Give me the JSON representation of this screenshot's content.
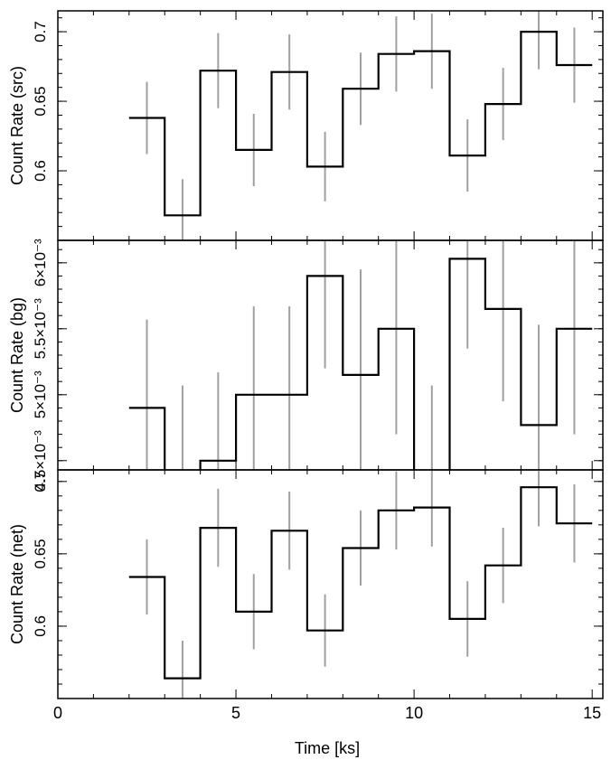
{
  "figure": {
    "xlabel": "Time [ks]",
    "colors": {
      "step": "#000000",
      "error_bar": "#a0a0a0",
      "axis": "#000000"
    }
  },
  "chart_data": [
    {
      "type": "line",
      "style": "step",
      "title": "",
      "ylabel": "Count Rate (src)",
      "xlabel": "",
      "xlim": [
        0,
        15.3
      ],
      "ylim": [
        0.55,
        0.715
      ],
      "yticks": [
        0.6,
        0.65,
        0.7
      ],
      "ytick_labels": [
        "0.6",
        "0.65",
        "0.7"
      ],
      "bin_width": 1.0,
      "x": [
        2.5,
        3.5,
        4.5,
        5.5,
        6.5,
        7.5,
        8.5,
        9.5,
        10.5,
        11.5,
        12.5,
        13.5,
        14.5
      ],
      "y": [
        0.638,
        0.568,
        0.672,
        0.615,
        0.671,
        0.603,
        0.659,
        0.684,
        0.686,
        0.611,
        0.648,
        0.7,
        0.676
      ],
      "yerr": [
        0.026,
        0.026,
        0.027,
        0.026,
        0.027,
        0.025,
        0.026,
        0.027,
        0.027,
        0.026,
        0.026,
        0.027,
        0.027
      ],
      "grid": false,
      "legend": "none"
    },
    {
      "type": "line",
      "style": "step",
      "title": "",
      "ylabel": "Count Rate (bg)",
      "xlabel": "",
      "xlim": [
        0,
        15.3
      ],
      "ylim": [
        0.00443,
        0.00617
      ],
      "yticks": [
        0.0045,
        0.005,
        0.0055,
        0.006
      ],
      "ytick_labels": [
        "4.5×10⁻³",
        "5×10⁻³",
        "5.5×10⁻³",
        "6×10⁻³"
      ],
      "bin_width": 1.0,
      "x": [
        2.5,
        3.5,
        4.5,
        5.5,
        6.5,
        7.5,
        8.5,
        9.5,
        10.5,
        11.5,
        12.5,
        13.5,
        14.5
      ],
      "y": [
        0.0049,
        0.0044,
        0.0045,
        0.005,
        0.005,
        0.0059,
        0.00515,
        0.0055,
        0.0044,
        0.00603,
        0.00565,
        0.00477,
        0.0055
      ],
      "yerr": [
        0.00067,
        0.00067,
        0.00067,
        0.00067,
        0.00067,
        0.0007,
        0.0008,
        0.0008,
        0.00067,
        0.00068,
        0.0007,
        0.00076,
        0.0008
      ],
      "grid": false,
      "legend": "none"
    },
    {
      "type": "line",
      "style": "step",
      "title": "",
      "ylabel": "Count Rate (net)",
      "xlabel": "Time [ks]",
      "xlim": [
        0,
        15.3
      ],
      "ylim": [
        0.55,
        0.708
      ],
      "yticks": [
        0.6,
        0.65,
        0.7
      ],
      "ytick_labels": [
        "0.6",
        "0.65",
        "0.7"
      ],
      "xticks": [
        0,
        5,
        10,
        15
      ],
      "xtick_labels": [
        "0",
        "5",
        "10",
        "15"
      ],
      "bin_width": 1.0,
      "x": [
        2.5,
        3.5,
        4.5,
        5.5,
        6.5,
        7.5,
        8.5,
        9.5,
        10.5,
        11.5,
        12.5,
        13.5,
        14.5
      ],
      "y": [
        0.634,
        0.564,
        0.668,
        0.61,
        0.666,
        0.597,
        0.654,
        0.68,
        0.682,
        0.605,
        0.642,
        0.696,
        0.671
      ],
      "yerr": [
        0.026,
        0.026,
        0.027,
        0.026,
        0.027,
        0.025,
        0.026,
        0.027,
        0.027,
        0.026,
        0.026,
        0.027,
        0.027
      ],
      "grid": false,
      "legend": "none"
    }
  ]
}
